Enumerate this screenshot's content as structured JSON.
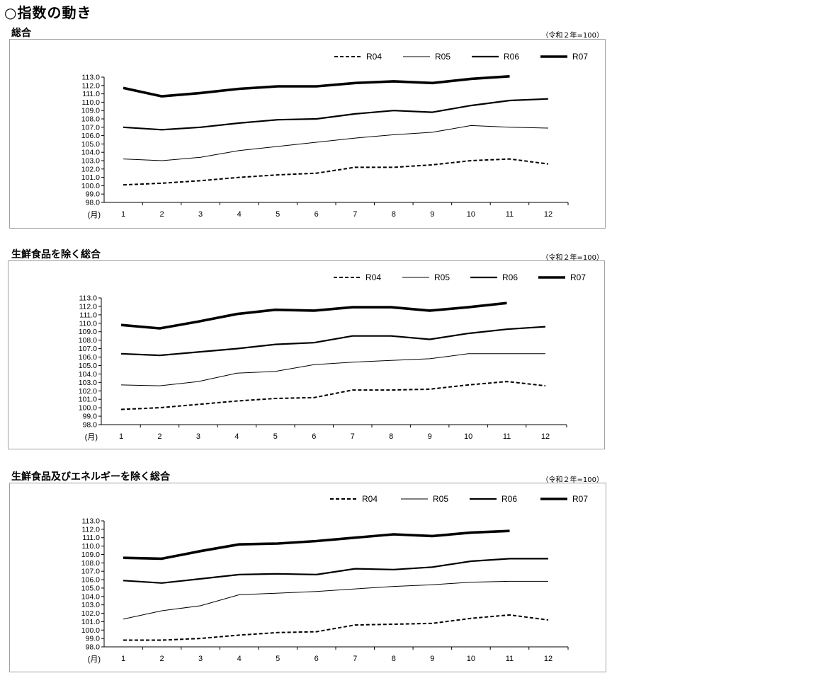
{
  "page": {
    "title": "○指数の動き"
  },
  "chart_data": [
    {
      "type": "line",
      "title": "総合",
      "base_note": "（令和２年=100）",
      "xlabel": "(月)",
      "ylabel": "",
      "categories": [
        "1",
        "2",
        "3",
        "4",
        "5",
        "6",
        "7",
        "8",
        "9",
        "10",
        "11",
        "12"
      ],
      "ylim": [
        98.0,
        113.0
      ],
      "yticks": [
        "98.0",
        "99.0",
        "100.0",
        "101.0",
        "102.0",
        "103.0",
        "104.0",
        "105.0",
        "106.0",
        "107.0",
        "108.0",
        "109.0",
        "110.0",
        "111.0",
        "112.0",
        "113.0"
      ],
      "legend_position": "top-right",
      "series": [
        {
          "name": "R04",
          "style": "dashed",
          "values": [
            100.1,
            100.3,
            100.6,
            101.0,
            101.3,
            101.5,
            102.2,
            102.2,
            102.5,
            103.0,
            103.2,
            102.6
          ]
        },
        {
          "name": "R05",
          "style": "thin",
          "values": [
            103.2,
            103.0,
            103.4,
            104.2,
            104.7,
            105.2,
            105.7,
            106.1,
            106.4,
            107.2,
            107.0,
            106.9
          ]
        },
        {
          "name": "R06",
          "style": "medium",
          "values": [
            107.0,
            106.7,
            107.0,
            107.5,
            107.9,
            108.0,
            108.6,
            109.0,
            108.8,
            109.6,
            110.2,
            110.4
          ]
        },
        {
          "name": "R07",
          "style": "thick",
          "values": [
            111.7,
            110.7,
            111.1,
            111.6,
            111.9,
            111.9,
            112.3,
            112.5,
            112.3,
            112.8,
            113.1,
            null
          ]
        }
      ]
    },
    {
      "type": "line",
      "title": "生鮮食品を除く総合",
      "base_note": "（令和２年=100）",
      "xlabel": "(月)",
      "ylabel": "",
      "categories": [
        "1",
        "2",
        "3",
        "4",
        "5",
        "6",
        "7",
        "8",
        "9",
        "10",
        "11",
        "12"
      ],
      "ylim": [
        98.0,
        113.0
      ],
      "yticks": [
        "98.0",
        "99.0",
        "100.0",
        "101.0",
        "102.0",
        "103.0",
        "104.0",
        "105.0",
        "106.0",
        "107.0",
        "108.0",
        "109.0",
        "110.0",
        "111.0",
        "112.0",
        "113.0"
      ],
      "legend_position": "top-right",
      "series": [
        {
          "name": "R04",
          "style": "dashed",
          "values": [
            99.8,
            100.0,
            100.4,
            100.8,
            101.1,
            101.2,
            102.1,
            102.1,
            102.2,
            102.7,
            103.1,
            102.6
          ]
        },
        {
          "name": "R05",
          "style": "thin",
          "values": [
            102.7,
            102.6,
            103.1,
            104.1,
            104.3,
            105.1,
            105.4,
            105.6,
            105.8,
            106.4,
            106.4,
            106.4
          ]
        },
        {
          "name": "R06",
          "style": "medium",
          "values": [
            106.4,
            106.2,
            106.6,
            107.0,
            107.5,
            107.7,
            108.5,
            108.5,
            108.1,
            108.8,
            109.3,
            109.6
          ]
        },
        {
          "name": "R07",
          "style": "thick",
          "values": [
            109.8,
            109.4,
            110.2,
            111.1,
            111.6,
            111.5,
            111.9,
            111.9,
            111.5,
            111.9,
            112.4,
            null
          ]
        }
      ]
    },
    {
      "type": "line",
      "title": "生鮮食品及びエネルギーを除く総合",
      "base_note": "（令和２年=100）",
      "xlabel": "(月)",
      "ylabel": "",
      "categories": [
        "1",
        "2",
        "3",
        "4",
        "5",
        "6",
        "7",
        "8",
        "9",
        "10",
        "11",
        "12"
      ],
      "ylim": [
        98.0,
        113.0
      ],
      "yticks": [
        "98.0",
        "99.0",
        "100.0",
        "101.0",
        "102.0",
        "103.0",
        "104.0",
        "105.0",
        "106.0",
        "107.0",
        "108.0",
        "109.0",
        "110.0",
        "111.0",
        "112.0",
        "113.0"
      ],
      "legend_position": "top-right",
      "series": [
        {
          "name": "R04",
          "style": "dashed",
          "values": [
            98.8,
            98.8,
            99.0,
            99.4,
            99.7,
            99.8,
            100.6,
            100.7,
            100.8,
            101.4,
            101.8,
            101.2
          ]
        },
        {
          "name": "R05",
          "style": "thin",
          "values": [
            101.3,
            102.3,
            102.9,
            104.2,
            104.4,
            104.6,
            104.9,
            105.2,
            105.4,
            105.7,
            105.8,
            105.8
          ]
        },
        {
          "name": "R06",
          "style": "medium",
          "values": [
            105.9,
            105.6,
            106.1,
            106.6,
            106.7,
            106.6,
            107.3,
            107.2,
            107.5,
            108.2,
            108.5,
            108.5
          ]
        },
        {
          "name": "R07",
          "style": "thick",
          "values": [
            108.6,
            108.5,
            109.4,
            110.2,
            110.3,
            110.6,
            111.0,
            111.4,
            111.2,
            111.6,
            111.8,
            null
          ]
        }
      ]
    }
  ]
}
